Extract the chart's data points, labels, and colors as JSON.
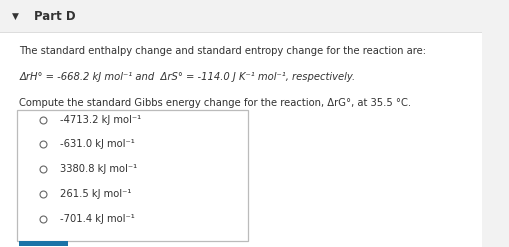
{
  "title": "Part D",
  "bg_color": "#f2f2f2",
  "content_bg": "#ffffff",
  "title_color": "#333333",
  "text_color": "#333333",
  "line1": "The standard enthalpy change and standard entropy change for the reaction are:",
  "line2a": "ΔrH° = -668.2 kJ mol⁻¹ and  ΔrS° = -114.0 J K⁻¹ mol⁻¹, respectively.",
  "line3": "Compute the standard Gibbs energy change for the reaction, ΔrG°, at 35.5 °C.",
  "choices": [
    "-4713.2 kJ mol⁻¹",
    "-631.0 kJ mol⁻¹",
    "3380.8 kJ mol⁻¹",
    "261.5 kJ mol⁻¹",
    "-701.4 kJ mol⁻¹"
  ],
  "accent_color": "#1a73a7",
  "box_border": "#bbbbbb",
  "font_size_title": 8.5,
  "font_size_body": 7.2,
  "font_size_choices": 7.2,
  "separator_color": "#dddddd",
  "circle_color": "#666666"
}
